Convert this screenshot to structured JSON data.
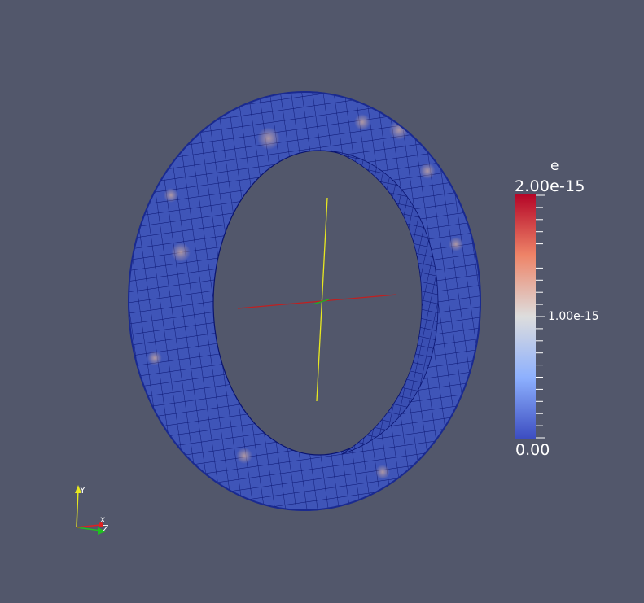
{
  "scalar_bar": {
    "title": "e",
    "max_label": "2.00e-15",
    "mid_label": "1.00e-15",
    "min_label": "0.00",
    "colors": {
      "high": "#b40426",
      "mid": "#dddddd",
      "low": "#3b4cc0"
    }
  },
  "orientation_axes": {
    "y_label": "Y",
    "x_label": "X",
    "z_label": "Z",
    "colors": {
      "x": "#e02020",
      "y": "#e8e820",
      "z": "#20c020"
    }
  },
  "scene": {
    "background": "#52576b",
    "object": "ring-mesh",
    "mesh_color": "#3f55b8",
    "grid_line_color": "#0a1470",
    "center_axes_colors": {
      "x": "#c02020",
      "y": "#e8e820",
      "z": "#20b020"
    }
  }
}
